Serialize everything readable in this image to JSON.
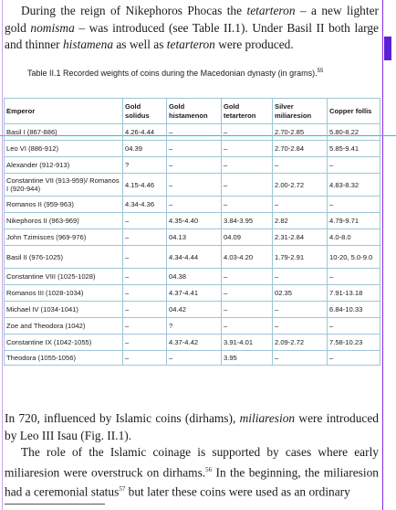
{
  "intro": {
    "line1_pre": "During the reign of Nikephoros Phocas the ",
    "line1_em1": "tetarteron",
    "line1_mid": " – a new lighter gold ",
    "line1_em2": "nomisma",
    "line1_post": " – was introduced (see Table II.1). Under Basil II both large and thinner ",
    "line1_em3": "histamena",
    "line1_mid2": " as well as ",
    "line1_em4": "tetarteron",
    "line1_end": " were produced."
  },
  "caption": {
    "text": "Table II.1 Recorded weights of coins during the Macedonian dynasty (in grams).",
    "note": "55"
  },
  "table": {
    "headers": [
      "Emperor",
      "Gold solidus",
      "Gold histamenon",
      "Gold tetarteron",
      "Silver miliaresion",
      "Copper follis"
    ],
    "rows": [
      [
        "Basil I (867-886)",
        "4.26-4.44",
        "–",
        "–",
        "2.70-2.85",
        "5.80-8.22"
      ],
      [
        "Leo VI (886-912)",
        "04.39",
        "–",
        "–",
        "2.70-2.84",
        "5.85-9.41"
      ],
      [
        "Alexander (912-913)",
        "?",
        "–",
        "–",
        "–",
        "–"
      ],
      [
        "Constantine VII (913-959)/ Romanos I (920-944)",
        "4.15-4.46",
        "–",
        "–",
        "2.00-2.72",
        "4.83-8.32"
      ],
      [
        "Romanos II (959-963)",
        "4.34-4.36",
        "–",
        "–",
        "–",
        "–"
      ],
      [
        "Nikephoros II (963-969)",
        "–",
        "4.35-4.40",
        "3.84-3.95",
        "2.82",
        "4.79-9.71"
      ],
      [
        "John Tzimisces (969-976)",
        "–",
        "04.13",
        "04.09",
        "2.31-2.84",
        "4.0-8.0"
      ],
      [
        "Basil II (976-1025)",
        "–",
        "4.34-4.44",
        "4.03-4.20",
        "1.79-2.91",
        "10-20, 5.0-9.0"
      ],
      [
        "Constantine VIII (1025-1028)",
        "–",
        "04.38",
        "–",
        "–",
        "–"
      ],
      [
        "Romanos III (1028-1034)",
        "–",
        "4.37-4.41",
        "–",
        "02.35",
        "7.91-13.18"
      ],
      [
        "Michael IV (1034-1041)",
        "–",
        "04.42",
        "–",
        "–",
        "6.84-10.33"
      ],
      [
        "Zoe and Theodora (1042)",
        "–",
        "?",
        "–",
        "–",
        "–"
      ],
      [
        "Constantine IX (1042-1055)",
        "–",
        "4.37-4.42",
        "3.91-4.01",
        "2.09-2.72",
        "7.58-10.23"
      ],
      [
        "Theodora (1055-1056)",
        "–",
        "–",
        "3.95",
        "–",
        "–"
      ]
    ]
  },
  "para2": {
    "pre": "In 720, influenced by Islamic coins (dirhams), ",
    "em": "miliaresion",
    "post": " were introduced by Leo III Isau (Fig. II.1)."
  },
  "para3": {
    "text1": "The role of the Islamic coinage is supported by cases where early miliaresion were overstruck on dirhams.",
    "note1": "56",
    "text2": " In the beginning, the miliaresion had a ceremonial status",
    "note2": "57",
    "text3": " but later these coins were used as an ordinary"
  },
  "colors": {
    "guide_purple": "#8a2be2",
    "guide_cyan": "#18c7d2",
    "table_border": "#9ec5d8"
  }
}
